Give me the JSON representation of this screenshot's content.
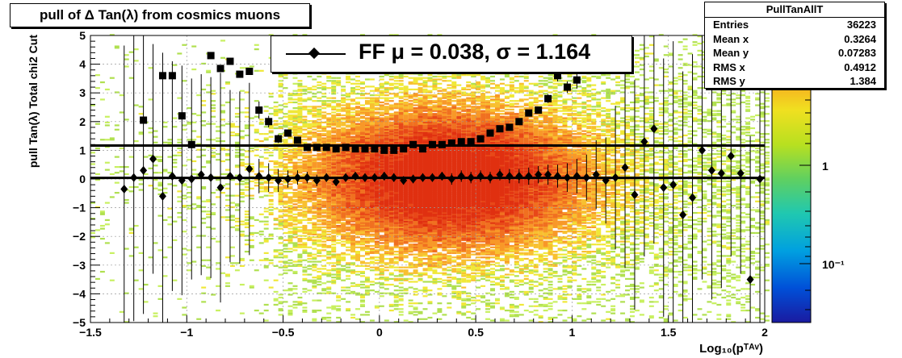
{
  "title": "pull of Δ Tan(λ) from cosmics muons",
  "stats": {
    "name": "PullTanAllT",
    "rows": [
      {
        "label": "Entries",
        "value": "36223"
      },
      {
        "label": "Mean x",
        "value": "0.3264"
      },
      {
        "label": "Mean y",
        "value": "0.07283"
      },
      {
        "label": "RMS x",
        "value": "0.4912"
      },
      {
        "label": "RMS y",
        "value": "1.384"
      }
    ]
  },
  "legend": {
    "label": "FF μ =  0.038, σ =   1.164"
  },
  "colorbar": {
    "tick_labels": [
      "1",
      "10⁻¹"
    ]
  },
  "chart_data": {
    "type": "scatter",
    "title": "pull of Δ Tan(λ) from cosmics muons",
    "xlabel": "Log₁₀(pᵀᴬᵛ)",
    "ylabel": "pull Tan(λ)  Total chi2 Cut",
    "xlim": [
      -1.5,
      2
    ],
    "ylim": [
      -5,
      5
    ],
    "x_ticks": [
      -1.5,
      -1,
      -0.5,
      0,
      0.5,
      1,
      1.5,
      2
    ],
    "x_tick_labels": [
      "−1.5",
      "−1",
      "−0.5",
      "0",
      "0.5",
      "1",
      "1.5",
      "2"
    ],
    "y_ticks": [
      -5,
      -4,
      -3,
      -2,
      -1,
      0,
      1,
      2,
      3,
      4,
      5
    ],
    "y_tick_labels": [
      "−5",
      "−4",
      "−3",
      "−2",
      "−1",
      "0",
      "1",
      "2",
      "3",
      "4",
      "5"
    ],
    "fit_lines": {
      "mean": 0.038,
      "sigma": 1.164
    },
    "series": [
      {
        "marker": "diamond",
        "x": [
          -1.325,
          -1.275,
          -1.225,
          -1.175,
          -1.125,
          -1.075,
          -1.025,
          -0.975,
          -0.925,
          -0.875,
          -0.825,
          -0.775,
          -0.725,
          -0.675,
          -0.625,
          -0.575,
          -0.525,
          -0.475,
          -0.425,
          -0.375,
          -0.325,
          -0.275,
          -0.225,
          -0.175,
          -0.125,
          -0.075,
          -0.025,
          0.025,
          0.075,
          0.125,
          0.175,
          0.225,
          0.275,
          0.325,
          0.375,
          0.425,
          0.475,
          0.525,
          0.575,
          0.625,
          0.675,
          0.725,
          0.775,
          0.825,
          0.875,
          0.925,
          0.975,
          1.025,
          1.075,
          1.125,
          1.175,
          1.225,
          1.275,
          1.325,
          1.375,
          1.425,
          1.475,
          1.525,
          1.575,
          1.625,
          1.675,
          1.725,
          1.775,
          1.825,
          1.875,
          1.925,
          1.975
        ],
        "y": [
          -0.35,
          0.05,
          0.3,
          0.7,
          -0.6,
          0.1,
          -0.05,
          0.0,
          0.15,
          0.05,
          -0.3,
          0.1,
          0.05,
          0.35,
          0.1,
          0.05,
          -0.05,
          0.0,
          0.05,
          0.05,
          -0.05,
          0.05,
          -0.1,
          0.05,
          0.1,
          0.05,
          0.05,
          0.1,
          0.05,
          -0.05,
          0.0,
          0.05,
          0.05,
          0.1,
          0.0,
          0.1,
          0.05,
          0.1,
          0.05,
          0.15,
          0.1,
          0.1,
          0.1,
          0.15,
          0.15,
          0.1,
          0.05,
          0.1,
          0.05,
          0.15,
          -0.05,
          0.05,
          0.4,
          -0.55,
          1.3,
          1.75,
          -0.3,
          -0.2,
          -1.25,
          -0.65,
          1.0,
          0.3,
          0.2,
          0.8,
          0.2,
          -3.5,
          0.0
        ],
        "y_err": [
          5,
          5,
          5,
          4,
          5,
          4,
          4,
          3.5,
          3.5,
          3.5,
          4,
          3,
          3,
          3,
          0.6,
          0.5,
          0.4,
          0.3,
          0.25,
          0.2,
          0.2,
          0.15,
          0.15,
          0.15,
          0.15,
          0.15,
          0.15,
          0.15,
          0.15,
          0.15,
          0.15,
          0.15,
          0.15,
          0.15,
          0.2,
          0.2,
          0.2,
          0.2,
          0.2,
          0.2,
          0.25,
          0.25,
          0.3,
          0.3,
          0.35,
          0.4,
          0.5,
          0.6,
          0.8,
          1.2,
          1.5,
          2.5,
          3.5,
          4,
          4,
          4,
          4.5,
          5,
          5,
          5,
          4.5,
          4.5,
          4,
          3.5,
          3.5,
          5,
          5
        ]
      },
      {
        "marker": "square",
        "x": [
          -1.325,
          -1.275,
          -1.225,
          -1.175,
          -1.125,
          -1.075,
          -1.025,
          -0.975,
          -0.925,
          -0.875,
          -0.825,
          -0.775,
          -0.725,
          -0.675,
          -0.625,
          -0.575,
          -0.525,
          -0.475,
          -0.425,
          -0.375,
          -0.325,
          -0.275,
          -0.225,
          -0.175,
          -0.125,
          -0.075,
          -0.025,
          0.025,
          0.075,
          0.125,
          0.175,
          0.225,
          0.275,
          0.325,
          0.375,
          0.425,
          0.475,
          0.525,
          0.575,
          0.625,
          0.675,
          0.725,
          0.775,
          0.825,
          0.875,
          0.925,
          0.975,
          1.025
        ],
        "y": [
          null,
          null,
          2.05,
          null,
          3.6,
          3.6,
          2.2,
          1.2,
          null,
          4.3,
          3.85,
          4.1,
          3.65,
          3.75,
          2.4,
          2.0,
          1.4,
          1.6,
          1.35,
          1.1,
          1.1,
          1.1,
          1.05,
          1.1,
          1.05,
          1.05,
          1.05,
          1.0,
          1.0,
          1.05,
          1.2,
          1.05,
          1.2,
          1.2,
          1.25,
          1.3,
          1.3,
          1.4,
          1.6,
          1.75,
          1.8,
          2.0,
          2.3,
          2.4,
          2.8,
          3.6,
          3.2,
          3.45
        ],
        "y_err": [
          0,
          0,
          0,
          0,
          0,
          0,
          0,
          0,
          0,
          0,
          0,
          0,
          0,
          0,
          0.3,
          0.2,
          0.15,
          0.1,
          0.08,
          0.06,
          0.05,
          0.05,
          0.05,
          0.05,
          0.05,
          0.05,
          0.05,
          0.05,
          0.05,
          0.05,
          0.05,
          0.05,
          0.05,
          0.05,
          0.05,
          0.05,
          0.06,
          0.06,
          0.07,
          0.08,
          0.08,
          0.1,
          0.1,
          0.12,
          0.15,
          0.2,
          0.2,
          0.3
        ]
      }
    ]
  }
}
